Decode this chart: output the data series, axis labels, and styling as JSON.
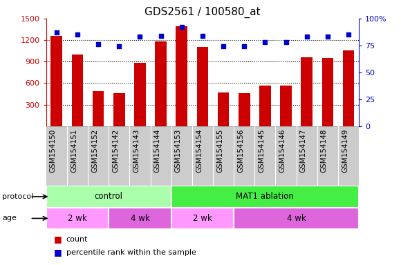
{
  "title": "GDS2561 / 100580_at",
  "samples": [
    "GSM154150",
    "GSM154151",
    "GSM154152",
    "GSM154142",
    "GSM154143",
    "GSM154144",
    "GSM154153",
    "GSM154154",
    "GSM154155",
    "GSM154156",
    "GSM154145",
    "GSM154146",
    "GSM154147",
    "GSM154148",
    "GSM154149"
  ],
  "counts": [
    1260,
    1000,
    490,
    460,
    880,
    1185,
    1390,
    1100,
    470,
    460,
    570,
    565,
    960,
    950,
    1060
  ],
  "percentiles": [
    87,
    85,
    76,
    74,
    83,
    84,
    92,
    84,
    74,
    74,
    78,
    78,
    83,
    83,
    85
  ],
  "ylim_left": [
    0,
    1500
  ],
  "ylim_right": [
    0,
    100
  ],
  "yticks_left": [
    300,
    600,
    900,
    1200,
    1500
  ],
  "yticks_right": [
    0,
    25,
    50,
    75,
    100
  ],
  "bar_color": "#cc0000",
  "dot_color": "#0000cc",
  "bar_width": 0.55,
  "age_groups": [
    {
      "label": "2 wk",
      "indices": [
        0,
        2
      ],
      "color": "#ff99ff"
    },
    {
      "label": "4 wk",
      "indices": [
        3,
        5
      ],
      "color": "#dd66dd"
    },
    {
      "label": "2 wk",
      "indices": [
        6,
        8
      ],
      "color": "#ff99ff"
    },
    {
      "label": "4 wk",
      "indices": [
        9,
        14
      ],
      "color": "#dd66dd"
    }
  ],
  "protocol_groups": [
    {
      "label": "control",
      "indices": [
        0,
        5
      ],
      "color": "#aaffaa"
    },
    {
      "label": "MAT1 ablation",
      "indices": [
        6,
        14
      ],
      "color": "#44ee44"
    }
  ],
  "plot_bg": "#ffffff",
  "xlabel_bg": "#cccccc",
  "label_fontsize": 7.5,
  "title_fontsize": 11
}
